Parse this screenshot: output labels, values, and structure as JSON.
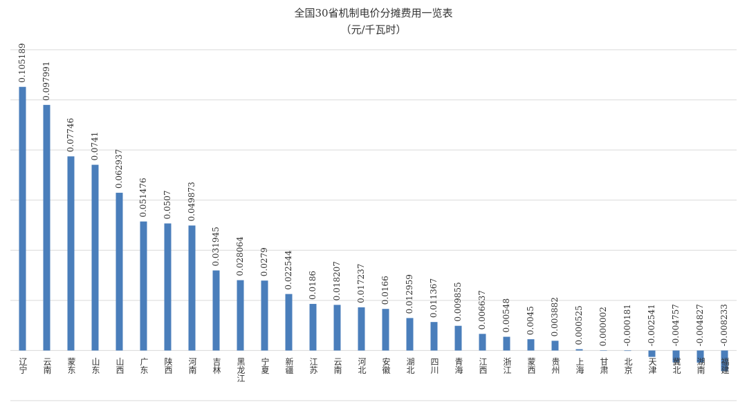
{
  "chart_data": {
    "type": "bar",
    "title": "全国30省机制电价分摊费用一览表",
    "subtitle": "（元/千瓦时）",
    "categories": [
      "辽宁",
      "云南",
      "蒙东",
      "山东",
      "山西",
      "广东",
      "陕西",
      "河南",
      "吉林",
      "黑龙江",
      "宁夏",
      "新疆",
      "江苏",
      "云南",
      "河北",
      "安徽",
      "湖北",
      "四川",
      "青海",
      "江西",
      "浙江",
      "蒙西",
      "贵州",
      "上海",
      "甘肃",
      "北京",
      "天津",
      "冀北",
      "湖南",
      "福建"
    ],
    "values": [
      0.105189,
      0.097991,
      0.07746,
      0.0741,
      0.062937,
      0.051476,
      0.0507,
      0.049873,
      0.031945,
      0.028064,
      0.0279,
      0.022544,
      0.0186,
      0.018207,
      0.017237,
      0.0166,
      0.012959,
      0.011367,
      0.009855,
      0.006637,
      0.00548,
      0.0045,
      0.003882,
      0.000525,
      2e-06,
      -0.000181,
      -0.002541,
      -0.004757,
      -0.004827,
      -0.008233
    ],
    "color": "#4a7ebb",
    "ylim": [
      -0.02,
      0.12
    ],
    "yticks": [
      -0.02,
      0,
      0.02,
      0.04,
      0.06,
      0.08,
      0.1,
      0.12
    ],
    "grid": true
  }
}
